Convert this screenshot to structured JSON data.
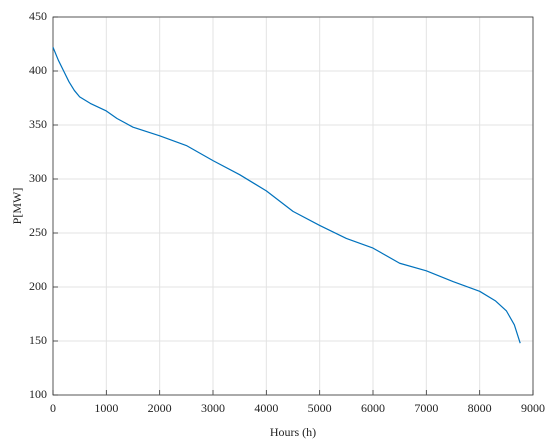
{
  "chart_data": {
    "type": "line",
    "x_label": "Hours (h)",
    "y_label": "P[MW]",
    "x": [
      0,
      100,
      200,
      300,
      400,
      500,
      700,
      1000,
      1200,
      1500,
      2000,
      2500,
      3000,
      3500,
      4000,
      4500,
      5000,
      5500,
      6000,
      6500,
      7000,
      7500,
      8000,
      8300,
      8500,
      8650,
      8760
    ],
    "values": [
      422,
      410,
      400,
      390,
      382,
      376,
      370,
      363,
      356,
      348,
      340,
      331,
      317,
      304,
      289,
      270,
      257,
      245,
      236,
      222,
      215,
      205,
      196,
      187,
      178,
      165,
      148
    ],
    "color": "#0072bd",
    "xlim": [
      0,
      9000
    ],
    "xticks": [
      0,
      1000,
      2000,
      3000,
      4000,
      5000,
      6000,
      7000,
      8000,
      9000
    ],
    "ylim": [
      100,
      450
    ],
    "yticks": [
      100,
      150,
      200,
      250,
      300,
      350,
      400,
      450
    ],
    "grid": true
  }
}
